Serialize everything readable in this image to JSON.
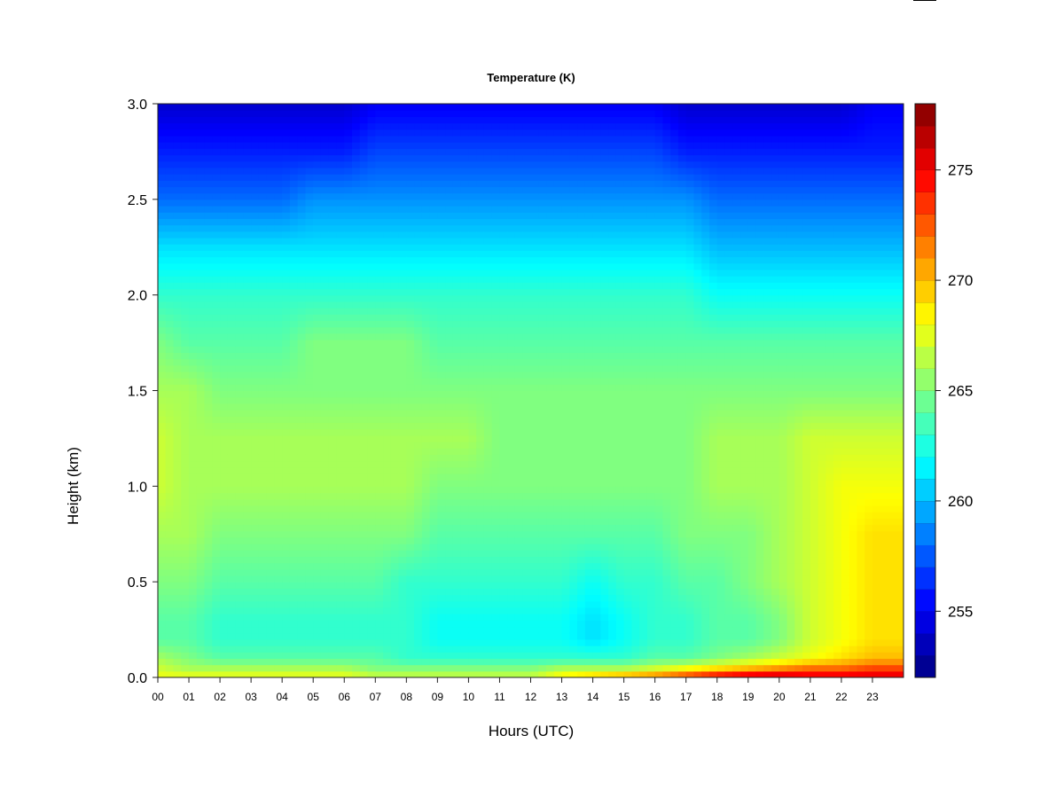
{
  "chart_data": {
    "type": "heatmap",
    "title": "Temperature (K)",
    "xlabel": "Hours (UTC)",
    "ylabel": "Height (km)",
    "xlim": [
      0,
      24
    ],
    "ylim": [
      0.0,
      3.0
    ],
    "x_ticks": [
      0,
      1,
      2,
      3,
      4,
      5,
      6,
      7,
      8,
      9,
      10,
      11,
      12,
      13,
      14,
      15,
      16,
      17,
      18,
      19,
      20,
      21,
      22,
      23
    ],
    "x_tick_labels": [
      "00",
      "01",
      "02",
      "03",
      "04",
      "05",
      "06",
      "07",
      "08",
      "09",
      "10",
      "11",
      "12",
      "13",
      "14",
      "15",
      "16",
      "17",
      "18",
      "19",
      "20",
      "21",
      "22",
      "23"
    ],
    "y_ticks": [
      0.0,
      0.5,
      1.0,
      1.5,
      2.0,
      2.5,
      3.0
    ],
    "y_tick_labels": [
      "0.0",
      "0.5",
      "1.0",
      "1.5",
      "2.0",
      "2.5",
      "3.0"
    ],
    "colorbar": {
      "min": 252,
      "max": 278,
      "ticks": [
        255,
        260,
        265,
        270,
        275
      ],
      "tick_labels": [
        "255",
        "260",
        "265",
        "270",
        "275"
      ],
      "levels": 26,
      "colormap": "jet"
    },
    "heights_km": [
      0.0,
      0.05,
      0.1,
      0.2,
      0.3,
      0.5,
      0.75,
      1.0,
      1.25,
      1.5,
      1.75,
      2.0,
      2.25,
      2.5,
      2.75,
      3.0
    ],
    "hours_utc": [
      0,
      1,
      2,
      3,
      4,
      5,
      6,
      7,
      8,
      9,
      10,
      11,
      12,
      13,
      14,
      15,
      16,
      17,
      18,
      19,
      20,
      21,
      22,
      23,
      24
    ],
    "temperature_profiles_K": [
      [
        268,
        267,
        266,
        264,
        264,
        265,
        266,
        267,
        267,
        266,
        265,
        263,
        261,
        258,
        256,
        254
      ],
      [
        268,
        266,
        265,
        264,
        264,
        265,
        266,
        266,
        266,
        266,
        264,
        263,
        261,
        258,
        256,
        254
      ],
      [
        268,
        266,
        264,
        263,
        263,
        264,
        265,
        266,
        266,
        265,
        264,
        263,
        261,
        258,
        256,
        254
      ],
      [
        268,
        266,
        264,
        263,
        263,
        264,
        265,
        266,
        266,
        265,
        264,
        263,
        261,
        258,
        256,
        254
      ],
      [
        268,
        266,
        264,
        263,
        263,
        264,
        265,
        266,
        266,
        265,
        264,
        263,
        261,
        258,
        256,
        254
      ],
      [
        268,
        266,
        264,
        263,
        263,
        264,
        265,
        266,
        266,
        265,
        265,
        263,
        261,
        259,
        256,
        254
      ],
      [
        268,
        266,
        264,
        263,
        263,
        264,
        265,
        266,
        266,
        265,
        265,
        263,
        261,
        259,
        256,
        254
      ],
      [
        267,
        265,
        264,
        263,
        263,
        264,
        265,
        266,
        266,
        265,
        265,
        263,
        261,
        259,
        257,
        255
      ],
      [
        267,
        265,
        263,
        263,
        263,
        263,
        265,
        266,
        266,
        265,
        265,
        263,
        261,
        259,
        257,
        255
      ],
      [
        267,
        265,
        263,
        262,
        262,
        263,
        264,
        265,
        266,
        265,
        264,
        263,
        261,
        259,
        257,
        255
      ],
      [
        267,
        265,
        263,
        262,
        262,
        263,
        264,
        265,
        266,
        265,
        264,
        263,
        261,
        259,
        257,
        255
      ],
      [
        267,
        265,
        263,
        262,
        262,
        263,
        264,
        265,
        265,
        265,
        264,
        263,
        261,
        259,
        257,
        255
      ],
      [
        267,
        265,
        263,
        262,
        262,
        263,
        264,
        265,
        265,
        265,
        264,
        263,
        261,
        259,
        257,
        255
      ],
      [
        269,
        266,
        263,
        262,
        262,
        263,
        264,
        265,
        265,
        265,
        264,
        263,
        261,
        259,
        257,
        255
      ],
      [
        270,
        266,
        263,
        261,
        261,
        262,
        264,
        265,
        265,
        265,
        264,
        263,
        261,
        259,
        257,
        255
      ],
      [
        271,
        266,
        263,
        262,
        262,
        263,
        264,
        265,
        265,
        265,
        264,
        263,
        261,
        259,
        257,
        255
      ],
      [
        272,
        267,
        264,
        263,
        263,
        263,
        264,
        265,
        265,
        265,
        264,
        263,
        261,
        259,
        257,
        255
      ],
      [
        274,
        268,
        264,
        263,
        263,
        264,
        265,
        265,
        265,
        265,
        264,
        263,
        261,
        259,
        256,
        254
      ],
      [
        276,
        269,
        265,
        264,
        264,
        264,
        265,
        266,
        266,
        265,
        264,
        262,
        260,
        258,
        256,
        254
      ],
      [
        277,
        270,
        266,
        264,
        264,
        265,
        265,
        266,
        266,
        265,
        264,
        262,
        260,
        258,
        256,
        254
      ],
      [
        277,
        271,
        267,
        265,
        265,
        266,
        266,
        266,
        266,
        265,
        264,
        262,
        260,
        258,
        256,
        254
      ],
      [
        276,
        272,
        268,
        267,
        267,
        267,
        267,
        267,
        267,
        265,
        264,
        262,
        260,
        258,
        256,
        254
      ],
      [
        276,
        272,
        269,
        268,
        268,
        268,
        268,
        268,
        267,
        265,
        264,
        262,
        260,
        258,
        256,
        254
      ],
      [
        276,
        273,
        270,
        269,
        269,
        269,
        269,
        268,
        267,
        265,
        264,
        262,
        260,
        258,
        256,
        255
      ],
      [
        276,
        273,
        270,
        269,
        269,
        269,
        269,
        268,
        267,
        265,
        264,
        262,
        260,
        258,
        256,
        255
      ]
    ]
  }
}
